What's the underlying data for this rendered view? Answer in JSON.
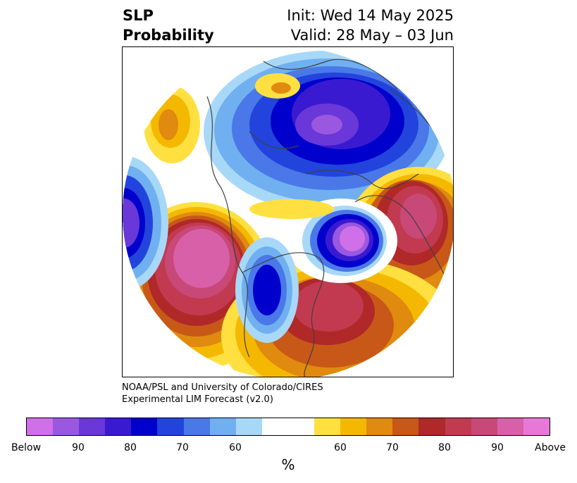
{
  "title": {
    "left_line1": "SLP",
    "left_line2": "Probability",
    "right_line1": "Init: Wed 14 May 2025",
    "right_line2": "Valid: 28 May – 03 Jun"
  },
  "credit": {
    "line1": "NOAA/PSL and University of Colorado/CIRES",
    "line2": "Experimental LIM Forecast (v2.0)"
  },
  "colorbar": {
    "colors": [
      "#d070e8",
      "#9a58e0",
      "#6a38d8",
      "#3a1ad0",
      "#0000cc",
      "#2244dd",
      "#4a78e8",
      "#70b0f0",
      "#a8d8f8",
      "#ffffff",
      "#ffffff",
      "#ffe040",
      "#f5b800",
      "#e08a10",
      "#c85818",
      "#b02828",
      "#c23a50",
      "#c84878",
      "#d860a8",
      "#e878d8"
    ],
    "tick_labels": [
      "Below",
      "90",
      "80",
      "70",
      "60",
      "60",
      "70",
      "80",
      "90",
      "Above"
    ],
    "unit": "%"
  },
  "map": {
    "projection": "north-polar-stereographic",
    "field": "SLP probability",
    "colors": {
      "below_strong": "#6a38d8",
      "below_mid": "#0000cc",
      "below_weak": "#4a78e8",
      "below_light": "#a8d8f8",
      "above_light": "#ffe040",
      "above_mid": "#f5b800",
      "above_orange": "#e08a10",
      "above_rust": "#c85818",
      "above_red": "#b02828",
      "above_crimson": "#c23a50",
      "above_pink": "#d860a8",
      "coast": "#404040"
    }
  }
}
